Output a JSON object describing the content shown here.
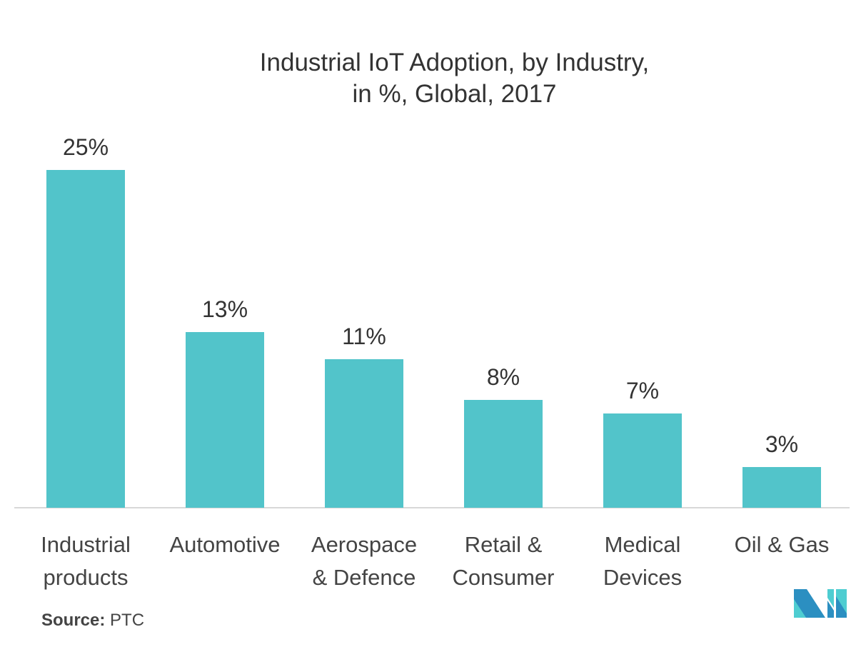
{
  "chart_data": {
    "type": "bar",
    "title": "Industrial IoT Adoption, by Industry,",
    "subtitle": "in %, Global, 2017",
    "categories": [
      "Industrial\nproducts",
      "Automotive",
      "Aerospace\n& Defence",
      "Retail &\nConsumer",
      "Medical\nDevices",
      "Oil & Gas"
    ],
    "values": [
      25,
      13,
      11,
      8,
      7,
      3
    ],
    "data_labels": [
      "25%",
      "13%",
      "11%",
      "8%",
      "7%",
      "3%"
    ],
    "ylim": [
      0,
      25
    ],
    "grid": false,
    "legend": "none",
    "bar_color": "#52C4CA"
  },
  "source": {
    "label": "Source:",
    "value": "PTC"
  },
  "logo": {
    "colors": [
      "#2B8FC1",
      "#4ECDD1"
    ]
  }
}
